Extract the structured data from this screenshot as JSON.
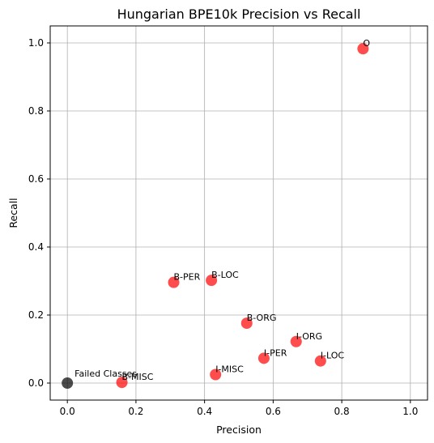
{
  "chart_data": {
    "type": "scatter",
    "title": "Hungarian BPE10k Precision vs Recall",
    "xlabel": "Precision",
    "ylabel": "Recall",
    "xlim": [
      -0.05,
      1.05
    ],
    "ylim": [
      -0.05,
      1.05
    ],
    "xticks": [
      "0.0",
      "0.2",
      "0.4",
      "0.6",
      "0.8",
      "1.0"
    ],
    "yticks": [
      "0.0",
      "0.2",
      "0.4",
      "0.6",
      "0.8",
      "1.0"
    ],
    "grid": true,
    "points": [
      {
        "label": "O",
        "x": 0.862,
        "y": 0.983,
        "color": "#ff0000"
      },
      {
        "label": "B-PER",
        "x": 0.31,
        "y": 0.296,
        "color": "#ff0000"
      },
      {
        "label": "B-LOC",
        "x": 0.42,
        "y": 0.302,
        "color": "#ff0000"
      },
      {
        "label": "B-ORG",
        "x": 0.523,
        "y": 0.176,
        "color": "#ff0000"
      },
      {
        "label": "I-ORG",
        "x": 0.667,
        "y": 0.122,
        "color": "#ff0000"
      },
      {
        "label": "I-PER",
        "x": 0.573,
        "y": 0.073,
        "color": "#ff0000"
      },
      {
        "label": "I-LOC",
        "x": 0.738,
        "y": 0.065,
        "color": "#ff0000"
      },
      {
        "label": "I-MISC",
        "x": 0.432,
        "y": 0.025,
        "color": "#ff0000"
      },
      {
        "label": "B-MISC",
        "x": 0.159,
        "y": 0.002,
        "color": "#ff0000"
      },
      {
        "label": "Failed Classes",
        "x": 0.0,
        "y": 0.0,
        "color": "#000000"
      }
    ]
  }
}
